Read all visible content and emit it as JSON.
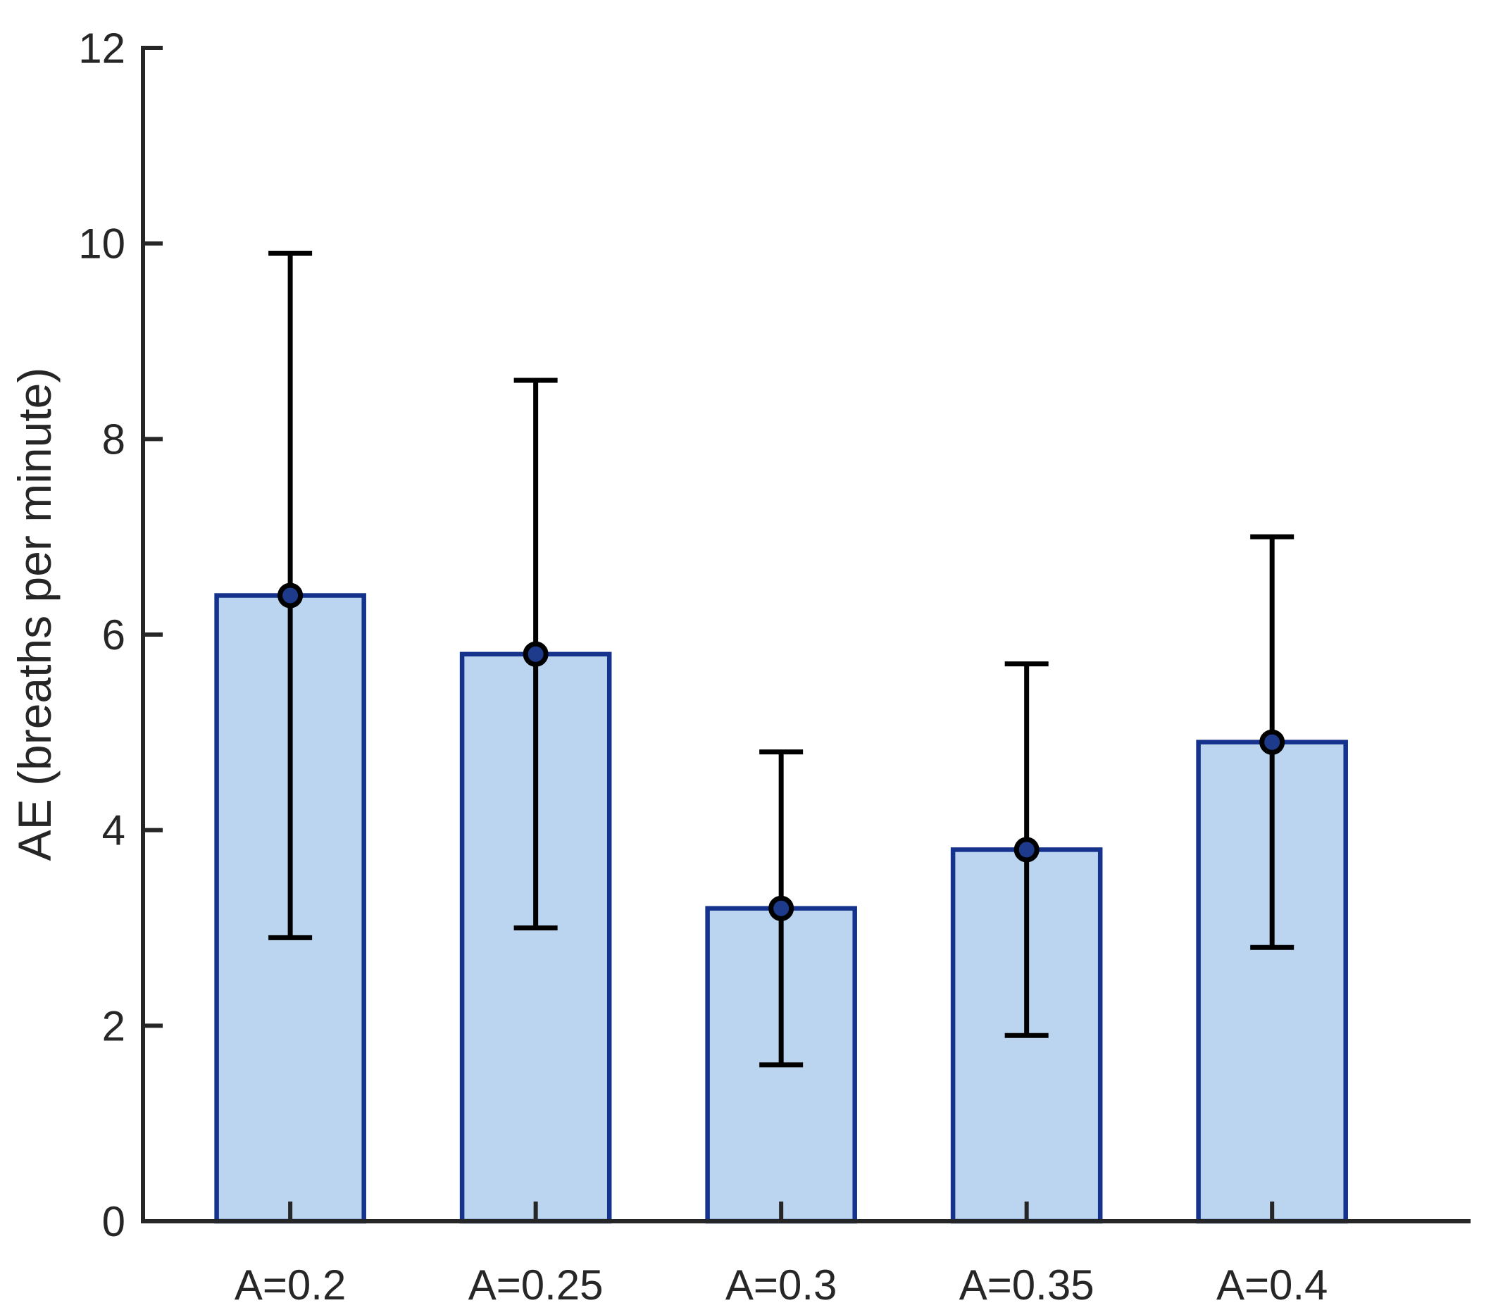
{
  "chart_data": {
    "type": "bar",
    "title": "",
    "xlabel": "",
    "ylabel": "AE (breaths per minute)",
    "categories": [
      "A=0.2",
      "A=0.25",
      "A=0.3",
      "A=0.35",
      "A=0.4"
    ],
    "values": [
      6.4,
      5.8,
      3.2,
      3.8,
      4.9
    ],
    "whisker_low": [
      2.9,
      3.0,
      1.6,
      1.9,
      2.8
    ],
    "whisker_high": [
      9.9,
      8.6,
      4.8,
      5.7,
      7.0
    ],
    "ylim": [
      0,
      12
    ],
    "yticks": [
      0,
      2,
      4,
      6,
      8,
      10,
      12
    ],
    "grid": false,
    "legend": null,
    "marker": "circle",
    "bar_width_fraction": 0.6,
    "colors": {
      "bar_fill": "#BBD4EF",
      "bar_edge": "#15328C",
      "marker_fill": "#1E3A8A",
      "marker_edge": "#000000",
      "error_bar": "#000000",
      "axis": "#262626",
      "text": "#262626"
    }
  }
}
